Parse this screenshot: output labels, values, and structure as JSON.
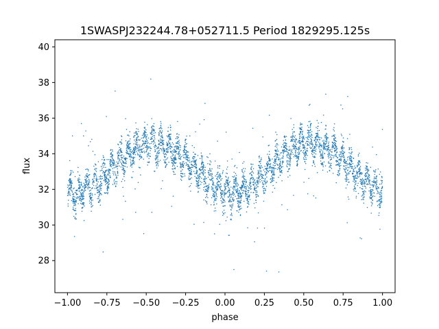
{
  "chart_data": {
    "type": "scatter",
    "title": "1SWASPJ232244.78+052711.5 Period 1829295.125s",
    "xlabel": "phase",
    "ylabel": "flux",
    "xlim": [
      -1.08,
      1.08
    ],
    "ylim": [
      26.2,
      40.4
    ],
    "x_ticks": [
      -1.0,
      -0.75,
      -0.5,
      -0.25,
      0.0,
      0.25,
      0.5,
      0.75,
      1.0
    ],
    "x_tick_labels": [
      "−1.00",
      "−0.75",
      "−0.50",
      "−0.25",
      "0.00",
      "0.25",
      "0.50",
      "0.75",
      "1.00"
    ],
    "y_ticks": [
      28,
      30,
      32,
      34,
      36,
      38,
      40
    ],
    "y_tick_labels": [
      "28",
      "30",
      "32",
      "34",
      "36",
      "38",
      "40"
    ],
    "grid": false,
    "legend": "none",
    "marker_color": "#1f77b4",
    "series": [
      {
        "x": [
          -1.0,
          -0.95,
          -0.9,
          -0.85,
          -0.8,
          -0.75,
          -0.7,
          -0.65,
          -0.6,
          -0.55,
          -0.5,
          -0.45,
          -0.4,
          -0.35,
          -0.3,
          -0.25,
          -0.2,
          -0.15,
          -0.1,
          -0.05,
          0.0,
          0.05,
          0.1,
          0.15,
          0.2,
          0.25,
          0.3,
          0.35,
          0.4,
          0.45,
          0.5,
          0.55,
          0.6,
          0.65,
          0.7,
          0.75,
          0.8,
          0.85,
          0.9,
          0.95,
          1.0
        ],
        "y": [
          31.9,
          31.6,
          32.0,
          32.1,
          32.4,
          32.8,
          33.3,
          33.7,
          34.1,
          34.4,
          34.6,
          34.6,
          34.5,
          34.3,
          34.0,
          33.6,
          33.2,
          32.8,
          32.4,
          32.0,
          31.9,
          31.8,
          31.9,
          32.1,
          32.4,
          32.8,
          33.3,
          33.7,
          34.1,
          34.4,
          34.6,
          34.6,
          34.5,
          34.3,
          34.0,
          33.6,
          33.2,
          32.8,
          32.4,
          32.0,
          31.9
        ]
      }
    ]
  }
}
